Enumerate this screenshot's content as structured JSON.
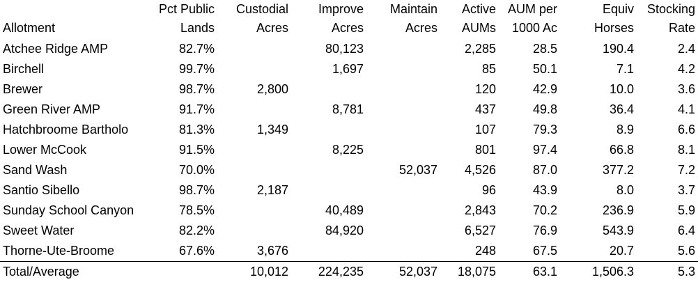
{
  "headers": [
    [
      "",
      "Allotment"
    ],
    [
      "Pct Public",
      "Lands"
    ],
    [
      "Custodial",
      "Acres"
    ],
    [
      "Improve",
      "Acres"
    ],
    [
      "Maintain",
      "Acres"
    ],
    [
      "Active",
      "AUMs"
    ],
    [
      "AUM per",
      "1000 Ac"
    ],
    [
      "Equiv",
      "Horses"
    ],
    [
      "Stocking",
      "Rate"
    ]
  ],
  "rows": [
    [
      "Atchee Ridge AMP",
      "82.7%",
      "",
      "80,123",
      "",
      "2,285",
      "28.5",
      "190.4",
      "2.4"
    ],
    [
      "Birchell",
      "99.7%",
      "",
      "1,697",
      "",
      "85",
      "50.1",
      "7.1",
      "4.2"
    ],
    [
      "Brewer",
      "98.7%",
      "2,800",
      "",
      "",
      "120",
      "42.9",
      "10.0",
      "3.6"
    ],
    [
      "Green River AMP",
      "91.7%",
      "",
      "8,781",
      "",
      "437",
      "49.8",
      "36.4",
      "4.1"
    ],
    [
      "Hatchbroome Bartholo",
      "81.3%",
      "1,349",
      "",
      "",
      "107",
      "79.3",
      "8.9",
      "6.6"
    ],
    [
      "Lower McCook",
      "91.5%",
      "",
      "8,225",
      "",
      "801",
      "97.4",
      "66.8",
      "8.1"
    ],
    [
      "Sand Wash",
      "70.0%",
      "",
      "",
      "52,037",
      "4,526",
      "87.0",
      "377.2",
      "7.2"
    ],
    [
      "Santio Sibello",
      "98.7%",
      "2,187",
      "",
      "",
      "96",
      "43.9",
      "8.0",
      "3.7"
    ],
    [
      "Sunday School Canyon",
      "78.5%",
      "",
      "40,489",
      "",
      "2,843",
      "70.2",
      "236.9",
      "5.9"
    ],
    [
      "Sweet Water",
      "82.2%",
      "",
      "84,920",
      "",
      "6,527",
      "76.9",
      "543.9",
      "6.4"
    ],
    [
      "Thorne-Ute-Broome",
      "67.6%",
      "3,676",
      "",
      "",
      "248",
      "67.5",
      "20.7",
      "5.6"
    ]
  ],
  "total": [
    "Total/Average",
    "",
    "10,012",
    "224,235",
    "52,037",
    "18,075",
    "63.1",
    "1,506.3",
    "5.3"
  ]
}
